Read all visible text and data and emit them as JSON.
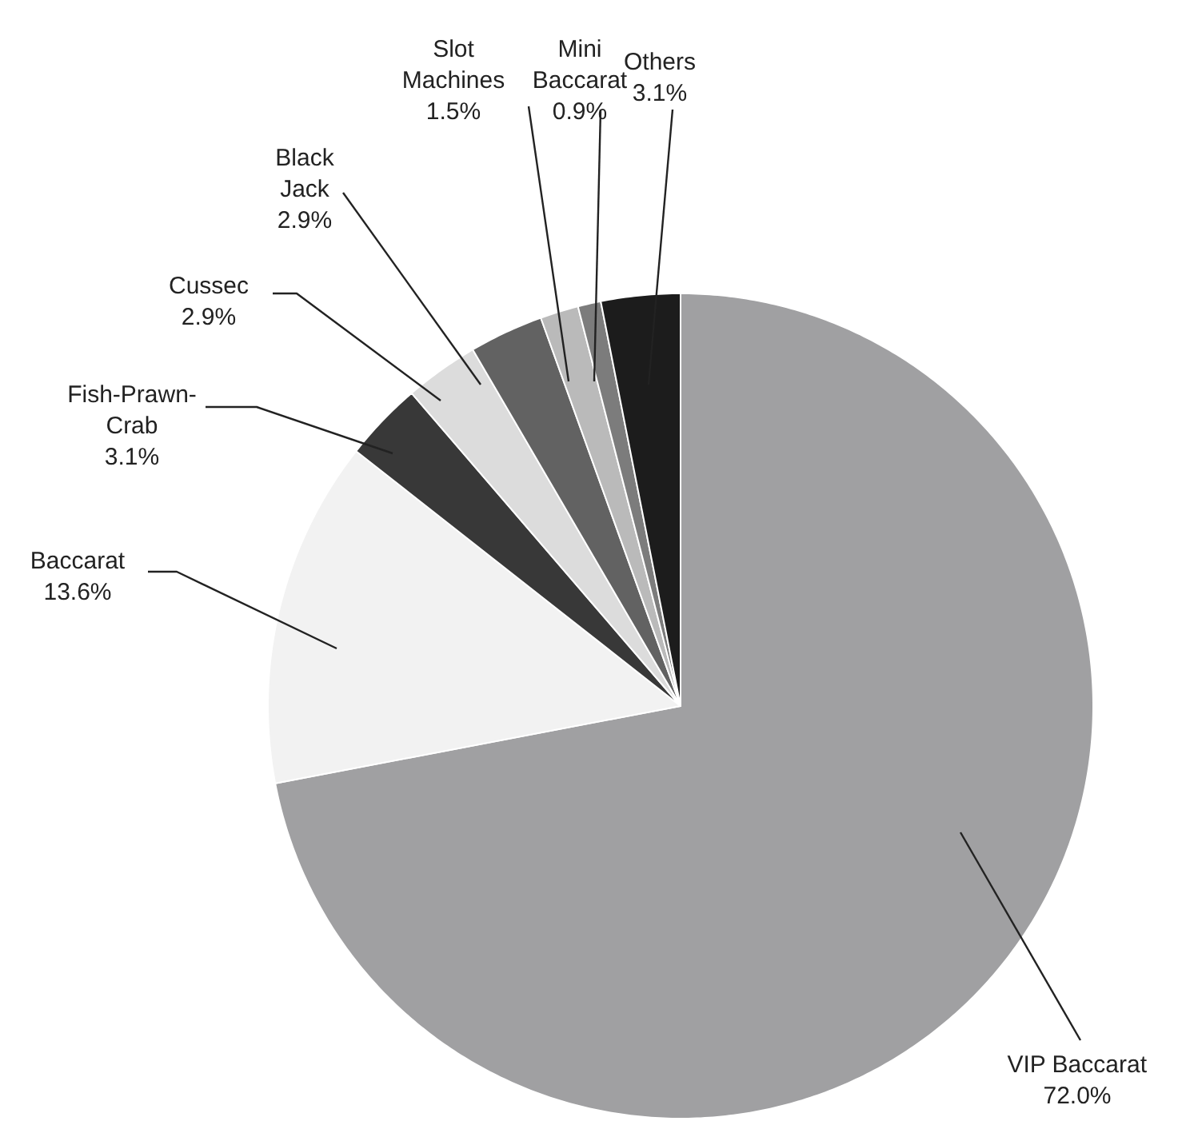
{
  "chart_data": {
    "type": "pie",
    "categories": [
      "VIP Baccarat",
      "Baccarat",
      "Fish-Prawn-\nCrab",
      "Cussec",
      "Black\nJack",
      "Slot\nMachines",
      "Mini\nBaccarat",
      "Others"
    ],
    "values": [
      72.0,
      13.6,
      3.1,
      2.9,
      2.9,
      1.5,
      0.9,
      3.1
    ],
    "value_labels": [
      "72.0%",
      "13.6%",
      "3.1%",
      "2.9%",
      "2.9%",
      "1.5%",
      "0.9%",
      "3.1%"
    ],
    "colors": [
      "#a0a0a2",
      "#f2f2f2",
      "#383838",
      "#dcdcdc",
      "#626262",
      "#bababa",
      "#7c7c7c",
      "#1c1c1c"
    ]
  }
}
